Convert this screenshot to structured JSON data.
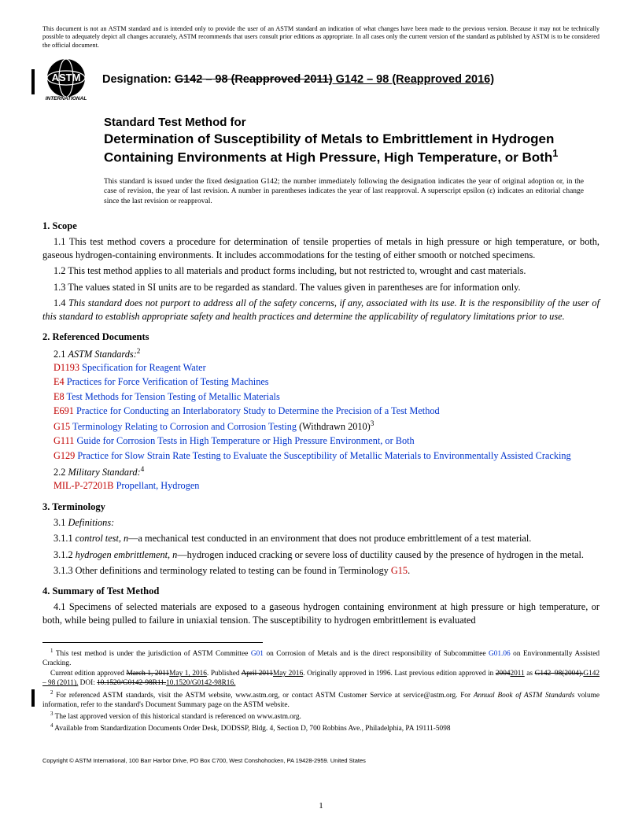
{
  "disclaimer": "This document is not an ASTM standard and is intended only to provide the user of an ASTM standard an indication of what changes have been made to the previous version. Because it may not be technically possible to adequately depict all changes accurately, ASTM recommends that users consult prior editions as appropriate. In all cases only the current version of the standard as published by ASTM is to be considered the official document.",
  "designation_label": "Designation: ",
  "designation_old": "G142 – 98 (Reapproved 2011)",
  "designation_new": " G142 – 98 (Reapproved 2016)",
  "logo_top": "ASTM",
  "logo_bottom": "INTERNATIONAL",
  "std_for": "Standard Test Method for",
  "main_title": "Determination of Susceptibility of Metals to Embrittlement in Hydrogen Containing Environments at High Pressure, High Temperature, or Both",
  "main_title_sup": "1",
  "issuance": "This standard is issued under the fixed designation G142; the number immediately following the designation indicates the year of original adoption or, in the case of revision, the year of last revision. A number in parentheses indicates the year of last reapproval. A superscript epsilon (ε) indicates an editorial change since the last revision or reapproval.",
  "s1_head": "1.  Scope",
  "s1_1": "1.1  This test method covers a procedure for determination of tensile properties of metals in high pressure or high temperature, or both, gaseous hydrogen-containing environments. It includes accommodations for the testing of either smooth or notched specimens.",
  "s1_2": "1.2  This test method applies to all materials and product forms including, but not restricted to, wrought and cast materials.",
  "s1_3": "1.3  The values stated in SI units are to be regarded as standard. The values given in parentheses are for information only.",
  "s1_4_a": "1.4  ",
  "s1_4_b": "This standard does not purport to address all of the safety concerns, if any, associated with its use. It is the responsibility of the user of this standard to establish appropriate safety and health practices and determine the applicability of regulatory limitations prior to use.",
  "s2_head": "2.  Referenced Documents",
  "s2_1_a": "2.1  ",
  "s2_1_b": "ASTM Standards:",
  "s2_1_sup": "2",
  "refs": [
    {
      "code": "D1193",
      "title": " Specification for Reagent Water"
    },
    {
      "code": "E4",
      "title": " Practices for Force Verification of Testing Machines"
    },
    {
      "code": "E8",
      "title": " Test Methods for Tension Testing of Metallic Materials"
    },
    {
      "code": "E691",
      "title": " Practice for Conducting an Interlaboratory Study to Determine the Precision of a Test Method"
    },
    {
      "code": "G15",
      "title": " Terminology Relating to Corrosion and Corrosion Testing",
      "suffix": " (Withdrawn 2010)",
      "sup": "3"
    },
    {
      "code": "G111",
      "title": " Guide for Corrosion Tests in High Temperature or High Pressure Environment, or Both"
    },
    {
      "code": "G129",
      "title": " Practice for Slow Strain Rate Testing to Evaluate the Susceptibility of Metallic Materials to Environmentally Assisted Cracking"
    }
  ],
  "s2_2_a": "2.2  ",
  "s2_2_b": "Military Standard:",
  "s2_2_sup": "4",
  "mil_code": "MIL-P-27201B",
  "mil_title": " Propellant, Hydrogen",
  "s3_head": "3.  Terminology",
  "s3_1_a": "3.1  ",
  "s3_1_b": "Definitions:",
  "s3_1_1_a": "3.1.1  ",
  "s3_1_1_b": "control test, n",
  "s3_1_1_c": "—a mechanical test conducted in an environment that does not produce embrittlement of a test material.",
  "s3_1_2_a": "3.1.2  ",
  "s3_1_2_b": "hydrogen embrittlement, n",
  "s3_1_2_c": "—hydrogen induced cracking or severe loss of ductility caused by the presence of hydrogen in the metal.",
  "s3_1_3_a": "3.1.3  Other definitions and terminology related to testing can be found in Terminology ",
  "s3_1_3_code": "G15",
  "s3_1_3_b": ".",
  "s4_head": "4.  Summary of Test Method",
  "s4_1": "4.1  Specimens of selected materials are exposed to a gaseous hydrogen containing environment at high pressure or high temperature, or both, while being pulled to failure in uniaxial tension. The susceptibility to hydrogen embrittlement is evaluated",
  "fn1_a": " This test method is under the jurisdiction of ASTM Committee ",
  "fn1_code1": "G01",
  "fn1_b": " on Corrosion of Metals and is the direct responsibility of Subcommittee ",
  "fn1_code2": "G01.06",
  "fn1_c": " on Environmentally Assisted Cracking.",
  "fn1_line2_a": "Current edition approved ",
  "fn1_line2_s1": "March 1, 2011",
  "fn1_line2_u1": "May 1, 2016",
  "fn1_line2_b": ". Published ",
  "fn1_line2_s2": "April 2011",
  "fn1_line2_u2": "May 2016",
  "fn1_line2_c": ". Originally approved in 1996. Last previous edition approved in ",
  "fn1_line2_s3": "2004",
  "fn1_line2_u3": "2011",
  "fn1_line2_d": " as ",
  "fn1_line2_s4": "G142–98(2004).",
  "fn1_line2_u4": "G142 – 98 (2011).",
  "fn1_line2_e": " DOI: ",
  "fn1_line2_s5": "10.1520/G0142-98R11.",
  "fn1_line2_u5": "10.1520/G0142-98R16.",
  "fn2": " For referenced ASTM standards, visit the ASTM website, www.astm.org, or contact ASTM Customer Service at service@astm.org. For Annual Book of ASTM Standards volume information, refer to the standard's Document Summary page on the ASTM website.",
  "fn2_italic": "Annual Book of ASTM Standards",
  "fn3": " The last approved version of this historical standard is referenced on www.astm.org.",
  "fn4": " Available from Standardization Documents Order Desk, DODSSP, Bldg. 4, Section D, 700 Robbins Ave., Philadelphia, PA 19111-5098",
  "copyright": "Copyright © ASTM International, 100 Barr Harbor Drive, PO Box C700, West Conshohocken, PA 19428-2959. United States",
  "pagenum": "1"
}
